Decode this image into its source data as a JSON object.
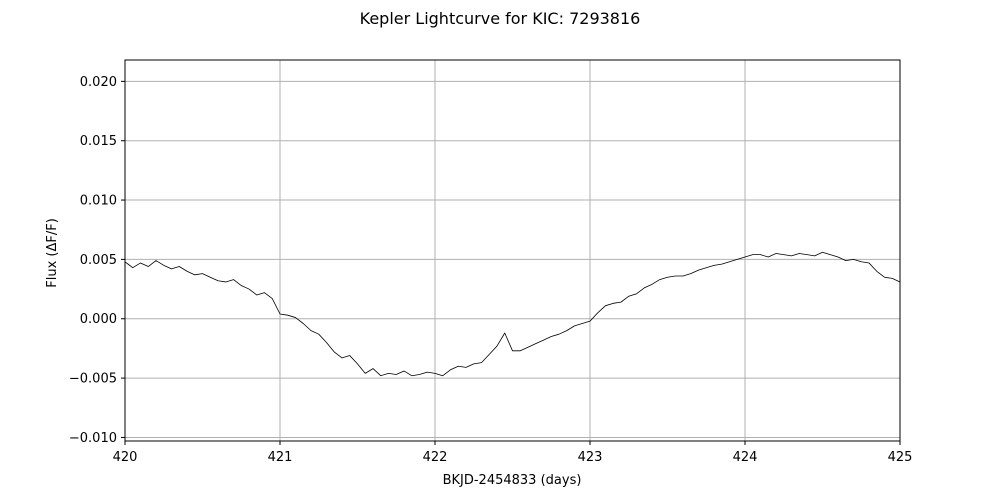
{
  "chart_data": {
    "type": "line",
    "title": "Kepler Lightcurve for KIC: 7293816",
    "xlabel": "BKJD-2454833 (days)",
    "ylabel": "Flux (ΔF/F)",
    "xlim": [
      420,
      425
    ],
    "ylim": [
      -0.0103,
      0.0218
    ],
    "xticks": [
      420,
      421,
      422,
      423,
      424,
      425
    ],
    "xtick_labels": [
      "420",
      "421",
      "422",
      "423",
      "424",
      "425"
    ],
    "yticks": [
      -0.01,
      -0.005,
      0.0,
      0.005,
      0.01,
      0.015,
      0.02
    ],
    "ytick_labels": [
      "−0.010",
      "−0.005",
      "0.000",
      "0.005",
      "0.010",
      "0.015",
      "0.020"
    ],
    "grid": true,
    "line_color": "#000000",
    "series": [
      {
        "x": [
          420.0,
          420.05,
          420.1,
          420.15,
          420.2,
          420.25,
          420.3,
          420.35,
          420.4,
          420.45,
          420.5,
          420.55,
          420.6,
          420.65,
          420.7,
          420.75,
          420.8,
          420.85,
          420.9,
          420.95,
          421.0,
          421.05,
          421.1,
          421.15,
          421.2,
          421.25,
          421.3,
          421.35,
          421.4,
          421.45,
          421.5,
          421.55,
          421.6,
          421.65,
          421.7,
          421.75,
          421.8,
          421.85,
          421.9,
          421.95,
          422.0,
          422.05,
          422.1,
          422.15,
          422.2,
          422.25,
          422.3,
          422.35,
          422.4,
          422.45,
          422.5,
          422.55,
          422.6,
          422.65,
          422.7,
          422.75,
          422.8,
          422.85,
          422.9,
          422.95,
          423.0,
          423.05,
          423.1,
          423.15,
          423.2,
          423.25,
          423.3,
          423.35,
          423.4,
          423.45,
          423.5,
          423.55,
          423.6,
          423.65,
          423.7,
          423.75,
          423.8,
          423.85,
          423.9,
          423.95,
          424.0,
          424.05,
          424.1,
          424.15,
          424.2,
          424.25,
          424.3,
          424.35,
          424.4,
          424.45,
          424.5,
          424.55,
          424.6,
          424.65,
          424.7,
          424.75,
          424.8,
          424.85,
          424.9,
          424.95,
          425.0
        ],
        "y": [
          0.0048,
          0.0043,
          0.0047,
          0.0044,
          0.0049,
          0.0045,
          0.0042,
          0.0044,
          0.004,
          0.0037,
          0.0038,
          0.0035,
          0.0032,
          0.0031,
          0.0033,
          0.0028,
          0.0025,
          0.002,
          0.0022,
          0.0017,
          0.0004,
          0.0003,
          0.0001,
          -0.0004,
          -0.001,
          -0.0013,
          -0.002,
          -0.0028,
          -0.0033,
          -0.0031,
          -0.0038,
          -0.0046,
          -0.0042,
          -0.0048,
          -0.0046,
          -0.0047,
          -0.0044,
          -0.0048,
          -0.0047,
          -0.0045,
          -0.0046,
          -0.0048,
          -0.0043,
          -0.004,
          -0.0041,
          -0.0038,
          -0.0037,
          -0.003,
          -0.0023,
          -0.0012,
          -0.0027,
          -0.0027,
          -0.0024,
          -0.0021,
          -0.0018,
          -0.0015,
          -0.0013,
          -0.001,
          -0.0006,
          -0.0004,
          -0.0002,
          0.0005,
          0.0011,
          0.0013,
          0.0014,
          0.0019,
          0.0021,
          0.0026,
          0.0029,
          0.0033,
          0.0035,
          0.0036,
          0.0036,
          0.0038,
          0.0041,
          0.0043,
          0.0045,
          0.0046,
          0.0048,
          0.005,
          0.0052,
          0.0054,
          0.0054,
          0.0052,
          0.0055,
          0.0054,
          0.0053,
          0.0055,
          0.0054,
          0.0053,
          0.0056,
          0.0054,
          0.0052,
          0.0049,
          0.005,
          0.0048,
          0.0047,
          0.004,
          0.0035,
          0.0034,
          0.0031
        ]
      }
    ]
  }
}
